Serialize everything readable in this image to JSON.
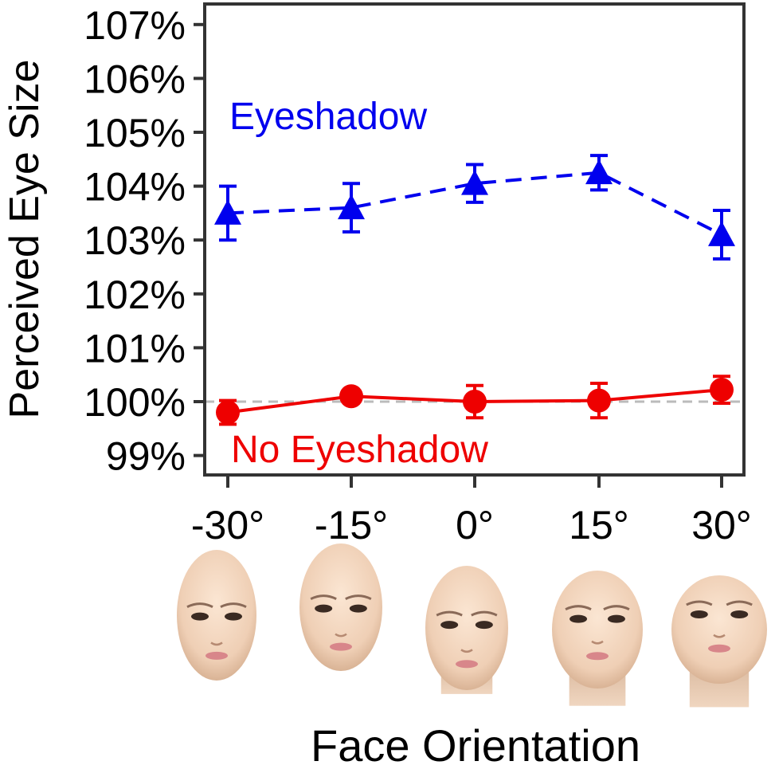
{
  "chart_data": {
    "type": "line",
    "xlabel": "Face Orientation",
    "ylabel": "Perceived Eye Size",
    "categories": [
      "-30°",
      "-15°",
      "0°",
      "15°",
      "30°"
    ],
    "y_ticks": [
      99,
      100,
      101,
      102,
      103,
      104,
      105,
      106,
      107
    ],
    "y_tick_labels": [
      "99%",
      "100%",
      "101%",
      "102%",
      "103%",
      "104%",
      "105%",
      "106%",
      "107%"
    ],
    "ylim": [
      98.6,
      107.3
    ],
    "reference_line": 100,
    "grid": false,
    "series": [
      {
        "name": "Eyeshadow",
        "values": [
          103.5,
          103.6,
          104.05,
          104.25,
          103.1
        ],
        "errors": [
          0.5,
          0.45,
          0.35,
          0.32,
          0.45
        ],
        "color": "#0000ee",
        "marker": "triangle",
        "line_style": "dashed"
      },
      {
        "name": "No Eyeshadow",
        "values": [
          99.8,
          100.1,
          100.0,
          100.02,
          100.22
        ],
        "errors": [
          0.22,
          0.1,
          0.3,
          0.32,
          0.25
        ],
        "color": "#ee0000",
        "marker": "circle",
        "line_style": "solid"
      }
    ],
    "face_icons": [
      "face-icon-minus-30",
      "face-icon-minus-15",
      "face-icon-0",
      "face-icon-15",
      "face-icon-30"
    ]
  }
}
